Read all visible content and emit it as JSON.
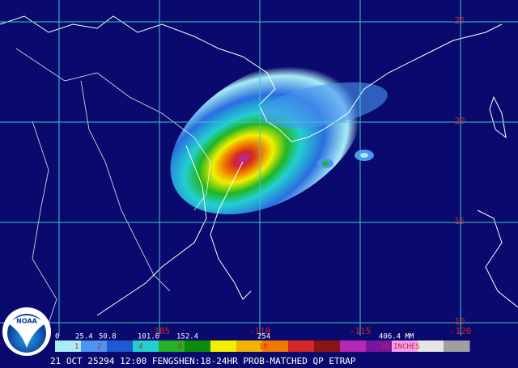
{
  "map": {
    "lat_labels": [
      25,
      20,
      15,
      10
    ],
    "lon_labels": [
      -105,
      -110,
      -115,
      -120
    ],
    "legend": {
      "mm_labels": [
        "0",
        "25.4",
        "50.8",
        "101.6",
        "152.4",
        "254",
        "406.4 MM"
      ],
      "inch_labels": [
        "1",
        "2",
        "4",
        "6",
        "10",
        "16 INCHES"
      ],
      "colors": [
        "#a8ecf4",
        "#4a96f0",
        "#1e5ad2",
        "#22d0d0",
        "#22b422",
        "#0a8c0a",
        "#f0f000",
        "#f0b400",
        "#f07800",
        "#d22828",
        "#8c1414",
        "#b428b4",
        "#7814a0",
        "#f0a0f0",
        "#e6e6e6",
        "#a0a0a0"
      ]
    },
    "caption": "21 OCT 25294 12:00 FENGSHEN:18-24HR PROB-MATCHED QP ETRAP",
    "logo": "NOAA"
  }
}
